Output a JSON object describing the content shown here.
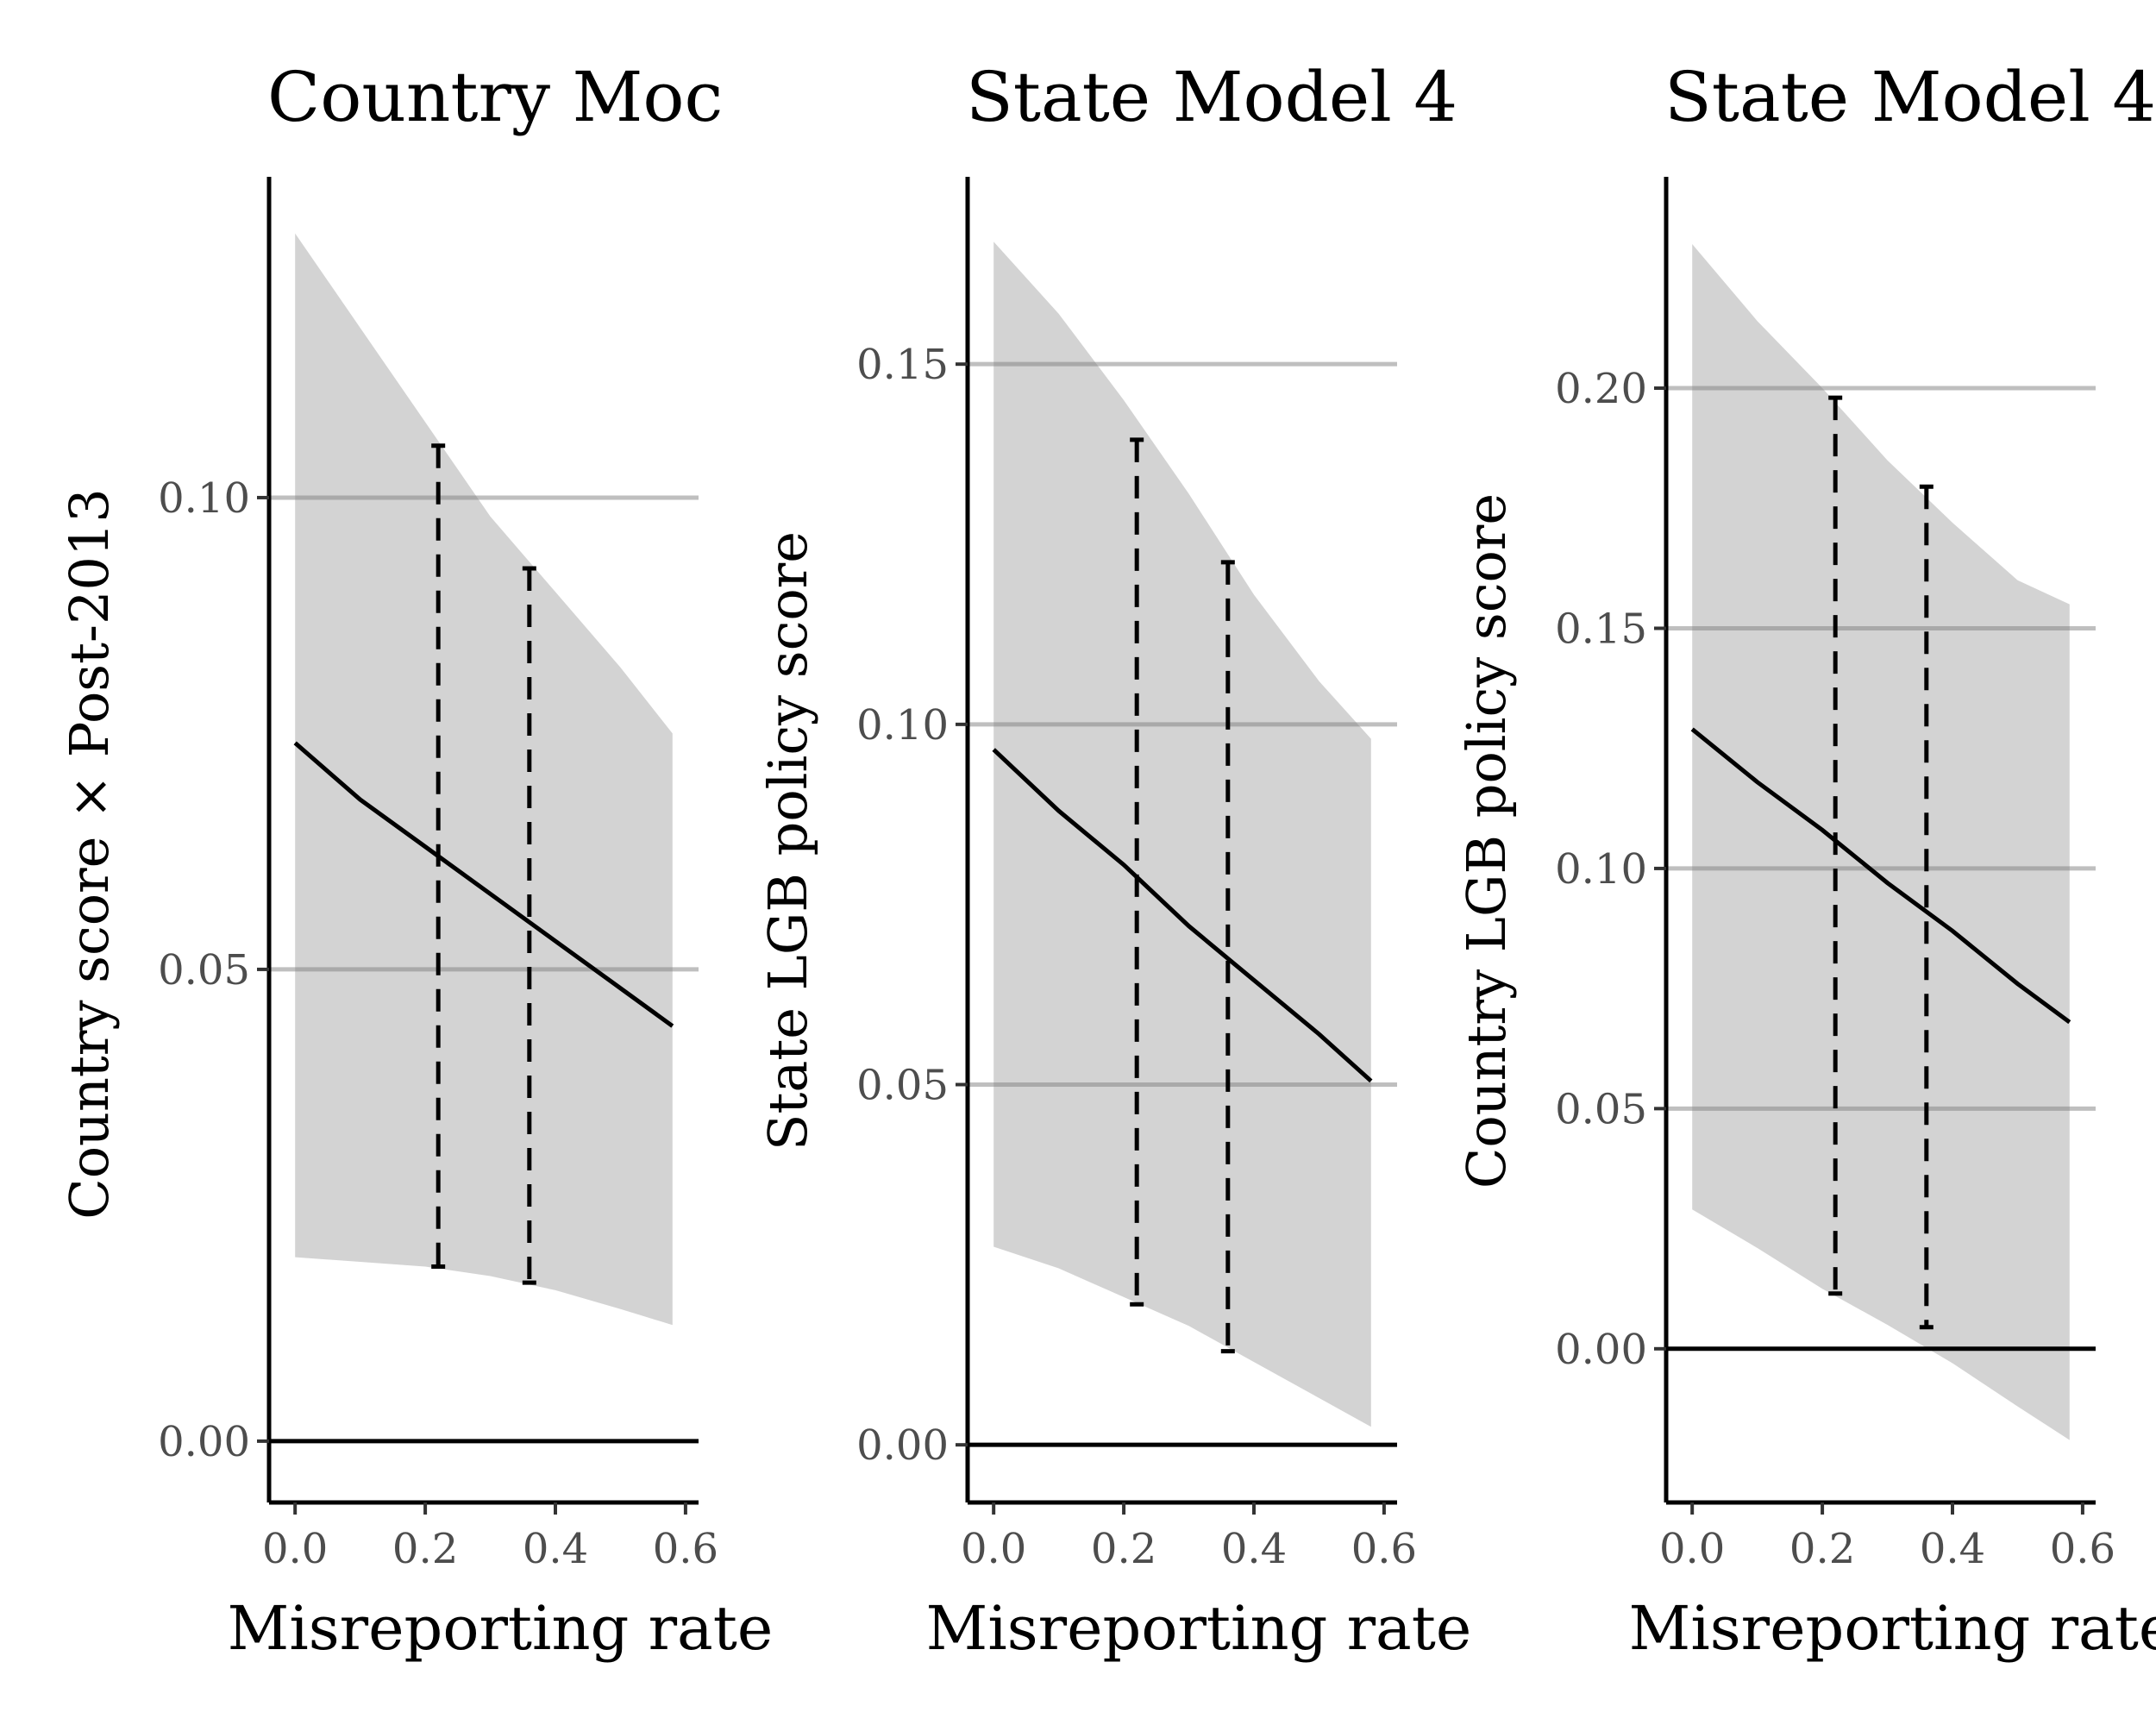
{
  "chart_data": [
    {
      "type": "line",
      "title": "Country Moc",
      "xlabel": "Misreporting rate",
      "ylabel": "Country score × Post-2013",
      "xlim": [
        -0.04,
        0.62
      ],
      "ylim": [
        -0.0065,
        0.134
      ],
      "x_ticks": [
        "0.0",
        "0.2",
        "0.4",
        "0.6"
      ],
      "y_ticks": [
        "0.00",
        "0.05",
        "0.10"
      ],
      "grid": "horizontal",
      "reference_line": 0,
      "line": {
        "x": [
          0,
          0.1,
          0.2,
          0.3,
          0.4,
          0.5,
          0.58
        ],
        "y": [
          0.074,
          0.068,
          0.063,
          0.058,
          0.053,
          0.048,
          0.044
        ]
      },
      "band": {
        "x": [
          0,
          0.1,
          0.2,
          0.3,
          0.4,
          0.5,
          0.58
        ],
        "lower": [
          0.0195,
          0.019,
          0.0185,
          0.0175,
          0.016,
          0.014,
          0.0123
        ],
        "upper": [
          0.128,
          0.118,
          0.108,
          0.098,
          0.09,
          0.082,
          0.075
        ]
      },
      "intervals": [
        {
          "x": 0.22,
          "lower": 0.0185,
          "upper": 0.1055
        },
        {
          "x": 0.36,
          "lower": 0.0168,
          "upper": 0.0925
        }
      ]
    },
    {
      "type": "line",
      "title": "State Model 4",
      "xlabel": "Misreporting rate",
      "ylabel": "State LGB policy score",
      "xlim": [
        -0.04,
        0.62
      ],
      "ylim": [
        -0.008,
        0.176
      ],
      "x_ticks": [
        "0.0",
        "0.2",
        "0.4",
        "0.6"
      ],
      "y_ticks": [
        "0.00",
        "0.05",
        "0.10",
        "0.15"
      ],
      "grid": "horizontal",
      "reference_line": 0,
      "line": {
        "x": [
          0,
          0.1,
          0.2,
          0.3,
          0.4,
          0.5,
          0.58
        ],
        "y": [
          0.0965,
          0.088,
          0.0805,
          0.072,
          0.0645,
          0.057,
          0.0505
        ]
      },
      "band": {
        "x": [
          0,
          0.1,
          0.2,
          0.3,
          0.4,
          0.5,
          0.58
        ],
        "lower": [
          0.0275,
          0.0245,
          0.0205,
          0.0165,
          0.0115,
          0.0065,
          0.0025
        ],
        "upper": [
          0.167,
          0.157,
          0.145,
          0.132,
          0.118,
          0.106,
          0.098
        ]
      },
      "intervals": [
        {
          "x": 0.22,
          "lower": 0.0195,
          "upper": 0.1395
        },
        {
          "x": 0.36,
          "lower": 0.013,
          "upper": 0.1225
        }
      ]
    },
    {
      "type": "line",
      "title": "State Model 4",
      "xlabel": "Misreporting rate",
      "ylabel": "Country LGB policy score",
      "xlim": [
        -0.04,
        0.62
      ],
      "ylim": [
        -0.032,
        0.244
      ],
      "x_ticks": [
        "0.0",
        "0.2",
        "0.4",
        "0.6"
      ],
      "y_ticks": [
        "0.00",
        "0.05",
        "0.10",
        "0.15",
        "0.20"
      ],
      "grid": "horizontal",
      "reference_line": 0,
      "line": {
        "x": [
          0,
          0.1,
          0.2,
          0.3,
          0.4,
          0.5,
          0.58
        ],
        "y": [
          0.129,
          0.118,
          0.108,
          0.097,
          0.087,
          0.076,
          0.068
        ]
      },
      "band": {
        "x": [
          0,
          0.1,
          0.2,
          0.3,
          0.4,
          0.5,
          0.58
        ],
        "lower": [
          0.029,
          0.021,
          0.0125,
          0.005,
          -0.003,
          -0.012,
          -0.019
        ],
        "upper": [
          0.23,
          0.214,
          0.2,
          0.185,
          0.172,
          0.16,
          0.155
        ]
      },
      "intervals": [
        {
          "x": 0.22,
          "lower": 0.0115,
          "upper": 0.198
        },
        {
          "x": 0.36,
          "lower": 0.0045,
          "upper": 0.1795
        }
      ]
    }
  ]
}
